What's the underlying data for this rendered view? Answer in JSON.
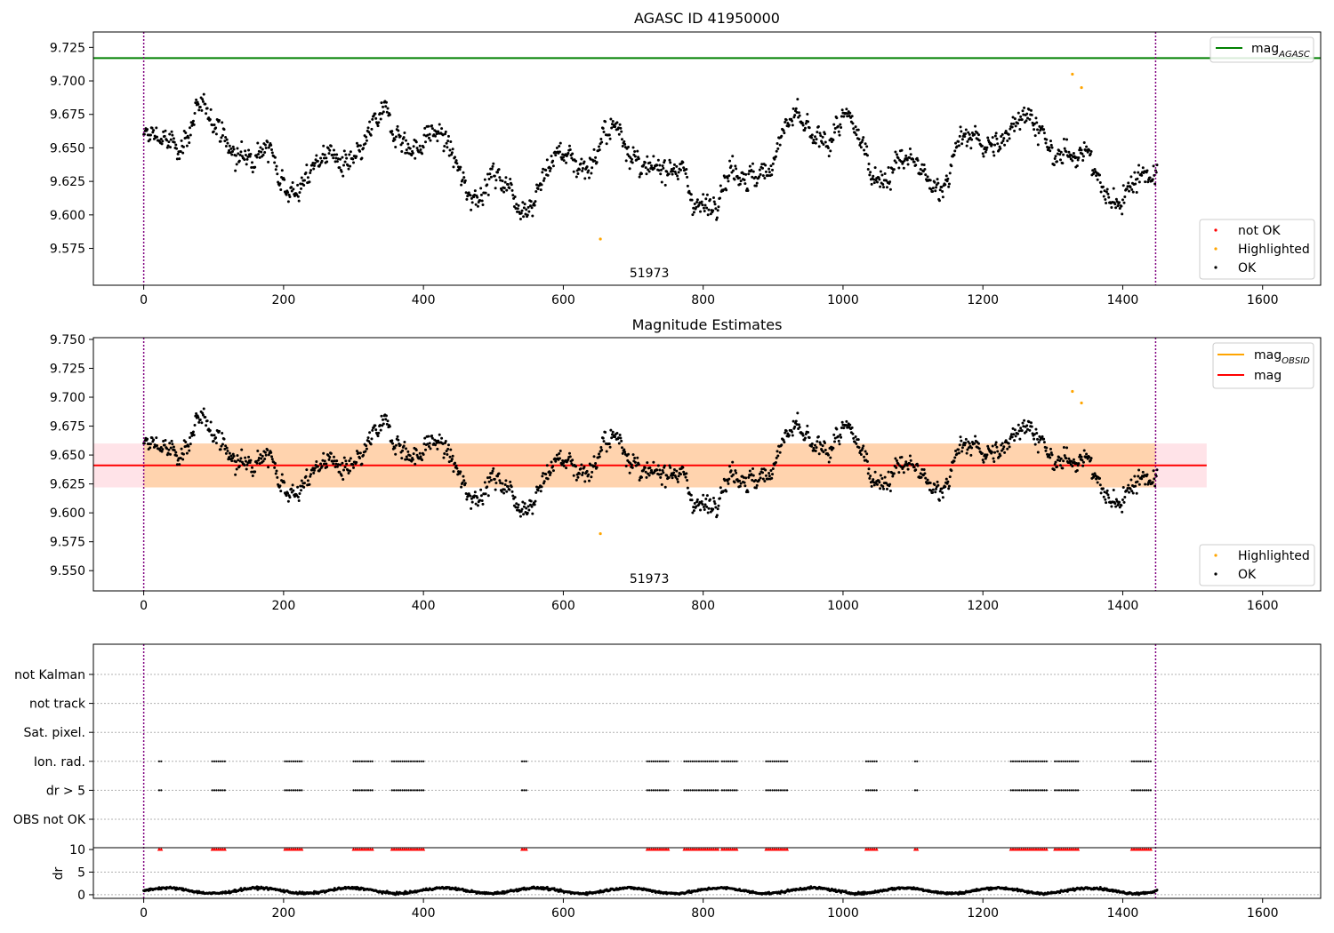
{
  "chart_data": [
    {
      "type": "scatter",
      "title": "AGASC ID 41950000",
      "xlim": [
        -72,
        1683
      ],
      "ylim": [
        9.5475,
        9.7365
      ],
      "xticks": [
        0,
        200,
        400,
        600,
        800,
        1000,
        1200,
        1400,
        1600
      ],
      "yticks": [
        9.575,
        9.6,
        9.625,
        9.65,
        9.675,
        9.7,
        9.725
      ],
      "ytick_labels": [
        "9.575",
        "9.600",
        "9.625",
        "9.650",
        "9.675",
        "9.700",
        "9.725"
      ],
      "grid": false,
      "hlines": [
        {
          "name": "mag$_{AGASC}$",
          "label_main": "mag",
          "label_sub": "AGASC",
          "y": 9.717,
          "color": "#008000"
        }
      ],
      "vlines": [
        0,
        1447
      ],
      "vline_color": "#800080",
      "annotation": {
        "text": "51973",
        "x": 723
      },
      "series": [
        {
          "name": "not OK",
          "color": "#ff0000",
          "x": [],
          "y": []
        },
        {
          "name": "Highlighted",
          "color": "#ffa500",
          "x": [
            653,
            1328,
            1341
          ],
          "y": [
            9.582,
            9.705,
            9.695
          ]
        },
        {
          "name": "OK",
          "color": "#000000",
          "n_points": 1450,
          "y_range": [
            9.59,
            9.69
          ],
          "note": "dense time series of magnitude estimates"
        }
      ],
      "legend": {
        "locations": [
          "top-right",
          "bottom-right"
        ],
        "lines": [
          "mag$_{AGASC}$"
        ],
        "points": [
          "not OK",
          "Highlighted",
          "OK"
        ]
      }
    },
    {
      "type": "scatter",
      "title": "Magnitude Estimates",
      "xlim": [
        -72,
        1683
      ],
      "ylim": [
        9.5325,
        9.7515
      ],
      "xticks": [
        0,
        200,
        400,
        600,
        800,
        1000,
        1200,
        1400,
        1600
      ],
      "yticks": [
        9.55,
        9.575,
        9.6,
        9.625,
        9.65,
        9.675,
        9.7,
        9.725,
        9.75
      ],
      "ytick_labels": [
        "9.550",
        "9.575",
        "9.600",
        "9.625",
        "9.650",
        "9.675",
        "9.700",
        "9.725",
        "9.750"
      ],
      "grid": false,
      "hlines": [
        {
          "name": "mag$_{OBSID}$",
          "label_main": "mag",
          "label_sub": "OBSID",
          "color": "#ffa500",
          "x": [],
          "y": []
        },
        {
          "name": "mag",
          "label_main": "mag",
          "label_sub": "",
          "y": 9.641,
          "x_range": [
            -72,
            1520
          ],
          "color": "#ff0000"
        }
      ],
      "band": {
        "y_range": [
          9.622,
          9.66
        ],
        "x_range": [
          -72,
          1520
        ],
        "color": "#ffc0cb"
      },
      "band_obsid": {
        "y_range": [
          9.622,
          9.66
        ],
        "x_range": [
          -72,
          1447
        ],
        "color": "#ffa500"
      },
      "vlines": [
        0,
        1447
      ],
      "annotation": {
        "text": "51973",
        "x": 723
      },
      "series": [
        {
          "name": "Highlighted",
          "color": "#ffa500",
          "x": [
            653,
            1328,
            1341
          ],
          "y": [
            9.582,
            9.705,
            9.695
          ]
        },
        {
          "name": "OK",
          "color": "#000000",
          "n_points": 1450,
          "y_range": [
            9.59,
            9.69
          ]
        }
      ],
      "legend": {
        "locations": [
          "top-right",
          "bottom-right"
        ],
        "lines": [
          "mag$_{OBSID}$",
          "mag"
        ],
        "points": [
          "Highlighted",
          "OK"
        ]
      }
    },
    {
      "type": "scatter",
      "title": "",
      "xlim": [
        -72,
        1683
      ],
      "xticks": [
        0,
        200,
        400,
        600,
        800,
        1000,
        1200,
        1400,
        1600
      ],
      "flag_rows": [
        "not Kalman",
        "not track",
        "Sat. pixel.",
        "Ion. rad.",
        "dr > 5",
        "OBS not OK"
      ],
      "flag_segments": [
        [
          22,
          26
        ],
        [
          98,
          118
        ],
        [
          202,
          228
        ],
        [
          300,
          328
        ],
        [
          355,
          402
        ],
        [
          541,
          548
        ],
        [
          720,
          750
        ],
        [
          773,
          822
        ],
        [
          827,
          848
        ],
        [
          890,
          922
        ],
        [
          1033,
          1048
        ],
        [
          1103,
          1106
        ],
        [
          1240,
          1292
        ],
        [
          1303,
          1336
        ],
        [
          1413,
          1442
        ]
      ],
      "flagged_rows": [
        "Ion. rad.",
        "dr > 5"
      ],
      "dr": {
        "ylabel": "dr",
        "yticks": [
          0,
          5,
          10
        ],
        "ylim": [
          -0.8,
          10.4
        ],
        "clip": 10,
        "y_range": [
          0.0,
          2.0
        ],
        "clipped_color": "#ff0000",
        "point_color": "#000000"
      },
      "vlines": [
        0,
        1447
      ]
    }
  ]
}
